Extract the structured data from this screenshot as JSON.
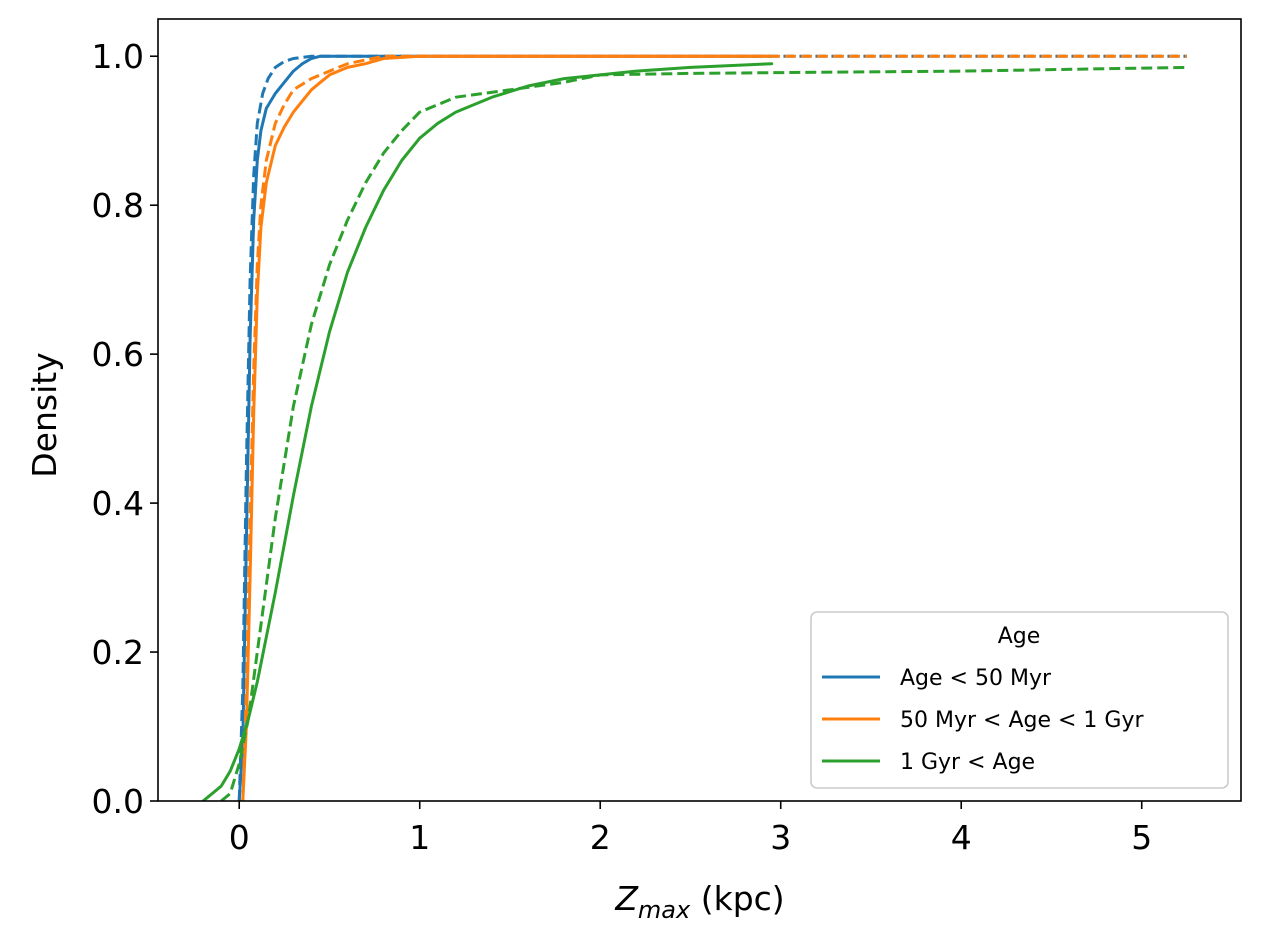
{
  "chart_data": {
    "type": "line",
    "title": "",
    "xlabel_main": "Z",
    "xlabel_sub": "max",
    "xlabel_unit": " (kpc)",
    "ylabel": "Density",
    "xlim": [
      -0.45,
      5.55
    ],
    "ylim": [
      0.0,
      1.05
    ],
    "xticks": [
      0,
      1,
      2,
      3,
      4,
      5
    ],
    "xtick_labels": [
      "0",
      "1",
      "2",
      "3",
      "4",
      "5"
    ],
    "yticks": [
      0.0,
      0.2,
      0.4,
      0.6,
      0.8,
      1.0
    ],
    "ytick_labels": [
      "0.0",
      "0.2",
      "0.4",
      "0.6",
      "0.8",
      "1.0"
    ],
    "grid": false,
    "legend": {
      "title": "Age",
      "placement": "lower-right",
      "entries": [
        {
          "label": "Age < 50 Myr",
          "color": "#1f77b4"
        },
        {
          "label": "50 Myr < Age < 1  Gyr",
          "color": "#ff7f0e"
        },
        {
          "label": "1 Gyr < Age",
          "color": "#2ca02c"
        }
      ]
    },
    "series": [
      {
        "name": "Age < 50 Myr (solid)",
        "color": "#1f77b4",
        "style": "solid",
        "x": [
          0.0,
          0.02,
          0.04,
          0.06,
          0.08,
          0.1,
          0.12,
          0.15,
          0.2,
          0.25,
          0.3,
          0.35,
          0.4,
          0.45,
          0.6,
          1.0,
          2.0,
          2.95
        ],
        "y": [
          0.0,
          0.08,
          0.35,
          0.62,
          0.78,
          0.86,
          0.9,
          0.93,
          0.95,
          0.965,
          0.98,
          0.99,
          0.997,
          1.0,
          1.0,
          1.0,
          1.0,
          1.0
        ]
      },
      {
        "name": "Age < 50 Myr (dashed)",
        "color": "#1f77b4",
        "style": "dashed",
        "x": [
          0.0,
          0.02,
          0.04,
          0.06,
          0.08,
          0.1,
          0.13,
          0.16,
          0.2,
          0.25,
          0.3,
          0.4,
          0.6,
          1.0,
          2.0,
          3.0,
          4.0,
          5.25
        ],
        "y": [
          0.0,
          0.15,
          0.45,
          0.7,
          0.84,
          0.91,
          0.95,
          0.97,
          0.985,
          0.993,
          0.997,
          1.0,
          1.0,
          1.0,
          1.0,
          1.0,
          1.0,
          1.0
        ]
      },
      {
        "name": "50 Myr < Age < 1 Gyr (solid)",
        "color": "#ff7f0e",
        "style": "solid",
        "x": [
          0.02,
          0.04,
          0.06,
          0.08,
          0.1,
          0.12,
          0.15,
          0.2,
          0.25,
          0.3,
          0.35,
          0.4,
          0.45,
          0.5,
          0.6,
          0.7,
          0.8,
          1.0,
          1.5,
          2.0,
          2.95
        ],
        "y": [
          0.0,
          0.1,
          0.3,
          0.52,
          0.68,
          0.77,
          0.83,
          0.88,
          0.905,
          0.925,
          0.94,
          0.955,
          0.965,
          0.975,
          0.985,
          0.99,
          0.997,
          1.0,
          1.0,
          1.0,
          1.0
        ]
      },
      {
        "name": "50 Myr < Age < 1 Gyr (dashed)",
        "color": "#ff7f0e",
        "style": "dashed",
        "x": [
          0.02,
          0.04,
          0.06,
          0.08,
          0.1,
          0.12,
          0.15,
          0.2,
          0.25,
          0.3,
          0.4,
          0.5,
          0.6,
          0.7,
          0.8,
          1.0,
          2.0,
          3.0,
          5.25
        ],
        "y": [
          0.0,
          0.15,
          0.38,
          0.58,
          0.72,
          0.8,
          0.86,
          0.91,
          0.935,
          0.955,
          0.97,
          0.98,
          0.99,
          0.995,
          1.0,
          1.0,
          1.0,
          1.0,
          1.0
        ]
      },
      {
        "name": "1 Gyr < Age (solid)",
        "color": "#2ca02c",
        "style": "solid",
        "x": [
          -0.2,
          -0.15,
          -0.1,
          -0.05,
          0.0,
          0.05,
          0.1,
          0.2,
          0.3,
          0.4,
          0.5,
          0.6,
          0.7,
          0.8,
          0.9,
          1.0,
          1.1,
          1.2,
          1.4,
          1.6,
          1.8,
          2.0,
          2.2,
          2.5,
          2.95
        ],
        "y": [
          0.0,
          0.01,
          0.02,
          0.04,
          0.07,
          0.11,
          0.16,
          0.28,
          0.41,
          0.53,
          0.63,
          0.71,
          0.77,
          0.82,
          0.86,
          0.89,
          0.91,
          0.925,
          0.945,
          0.96,
          0.97,
          0.975,
          0.98,
          0.985,
          0.99
        ]
      },
      {
        "name": "1 Gyr < Age (dashed)",
        "color": "#2ca02c",
        "style": "dashed",
        "x": [
          -0.1,
          -0.05,
          0.0,
          0.05,
          0.1,
          0.15,
          0.2,
          0.3,
          0.4,
          0.5,
          0.6,
          0.7,
          0.8,
          0.9,
          1.0,
          1.2,
          1.5,
          1.8,
          2.0,
          2.5,
          3.0,
          4.0,
          5.25
        ],
        "y": [
          0.0,
          0.01,
          0.05,
          0.11,
          0.2,
          0.29,
          0.38,
          0.53,
          0.64,
          0.72,
          0.78,
          0.83,
          0.87,
          0.9,
          0.925,
          0.945,
          0.955,
          0.965,
          0.975,
          0.977,
          0.978,
          0.98,
          0.985
        ]
      }
    ]
  }
}
